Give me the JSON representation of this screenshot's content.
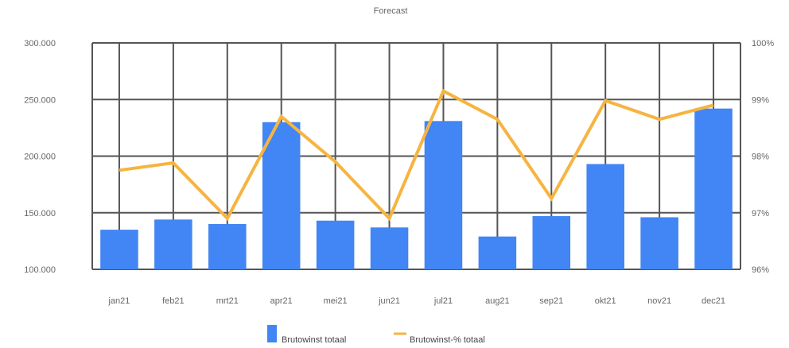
{
  "chart_data": {
    "type": "bar",
    "title": "Forecast",
    "xlabel": "",
    "ylabel": "",
    "categories": [
      "jan21",
      "feb21",
      "mrt21",
      "apr21",
      "mei21",
      "jun21",
      "jul21",
      "aug21",
      "sep21",
      "okt21",
      "nov21",
      "dec21"
    ],
    "y_left": {
      "min": 100000,
      "max": 300000,
      "ticks": [
        100000,
        150000,
        200000,
        250000,
        300000
      ],
      "tick_labels": [
        "100.000",
        "150.000",
        "200.000",
        "250.000",
        "300.000"
      ]
    },
    "y_right": {
      "min": 96,
      "max": 100,
      "ticks": [
        96,
        97,
        98,
        99,
        100
      ],
      "tick_labels": [
        "96%",
        "97%",
        "98%",
        "99%",
        "100%"
      ]
    },
    "series": [
      {
        "name": "Brutowinst totaal",
        "type": "bar",
        "axis": "left",
        "color": "#4285f4",
        "values": [
          135000,
          144000,
          140000,
          230000,
          143000,
          137000,
          231000,
          129000,
          147000,
          193000,
          146000,
          242000
        ]
      },
      {
        "name": "Brutowinst-% totaal",
        "type": "line",
        "axis": "right",
        "color": "#f6b440",
        "values": [
          97.75,
          97.88,
          96.9,
          98.7,
          97.9,
          96.9,
          99.15,
          98.65,
          97.25,
          98.98,
          98.65,
          98.9
        ]
      }
    ],
    "grid": true,
    "legend": "bottom"
  }
}
